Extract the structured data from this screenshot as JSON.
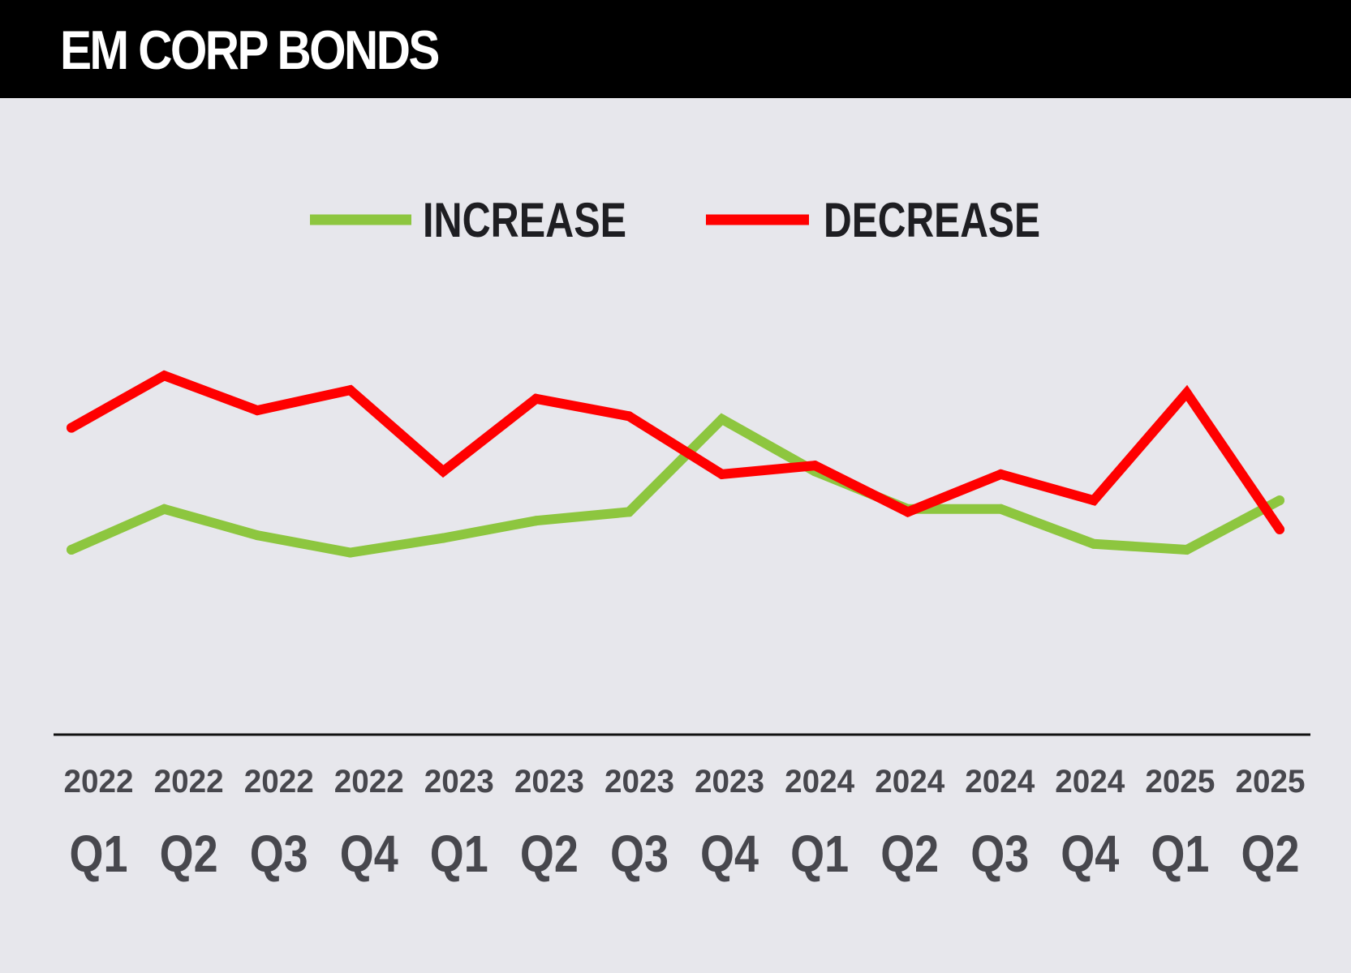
{
  "title": "EM CORP BONDS",
  "colors": {
    "background": "#e7e7ec",
    "header": "#000000",
    "increase": "#8dc63f",
    "decrease": "#ff0000",
    "axis": "#111111",
    "tick_text": "#47474d"
  },
  "chart_data": {
    "type": "line",
    "title": "EM CORP BONDS",
    "xlabel": "",
    "ylabel": "",
    "grid": false,
    "legend_position": "top-center",
    "ylim": [
      0,
      100
    ],
    "categories": [
      {
        "year": "2022",
        "quarter": "Q1"
      },
      {
        "year": "2022",
        "quarter": "Q2"
      },
      {
        "year": "2022",
        "quarter": "Q3"
      },
      {
        "year": "2022",
        "quarter": "Q4"
      },
      {
        "year": "2023",
        "quarter": "Q1"
      },
      {
        "year": "2023",
        "quarter": "Q2"
      },
      {
        "year": "2023",
        "quarter": "Q3"
      },
      {
        "year": "2023",
        "quarter": "Q4"
      },
      {
        "year": "2024",
        "quarter": "Q1"
      },
      {
        "year": "2024",
        "quarter": "Q2"
      },
      {
        "year": "2024",
        "quarter": "Q3"
      },
      {
        "year": "2024",
        "quarter": "Q4"
      },
      {
        "year": "2025",
        "quarter": "Q1"
      },
      {
        "year": "2025",
        "quarter": "Q2"
      }
    ],
    "series": [
      {
        "name": "INCREASE",
        "color": "#8dc63f",
        "values": [
          38,
          52,
          43,
          37,
          42,
          48,
          51,
          83,
          65,
          52,
          52,
          40,
          38,
          55
        ]
      },
      {
        "name": "DECREASE",
        "color": "#ff0000",
        "values": [
          80,
          98,
          86,
          93,
          65,
          90,
          84,
          64,
          67,
          51,
          64,
          55,
          92,
          45
        ]
      }
    ]
  }
}
